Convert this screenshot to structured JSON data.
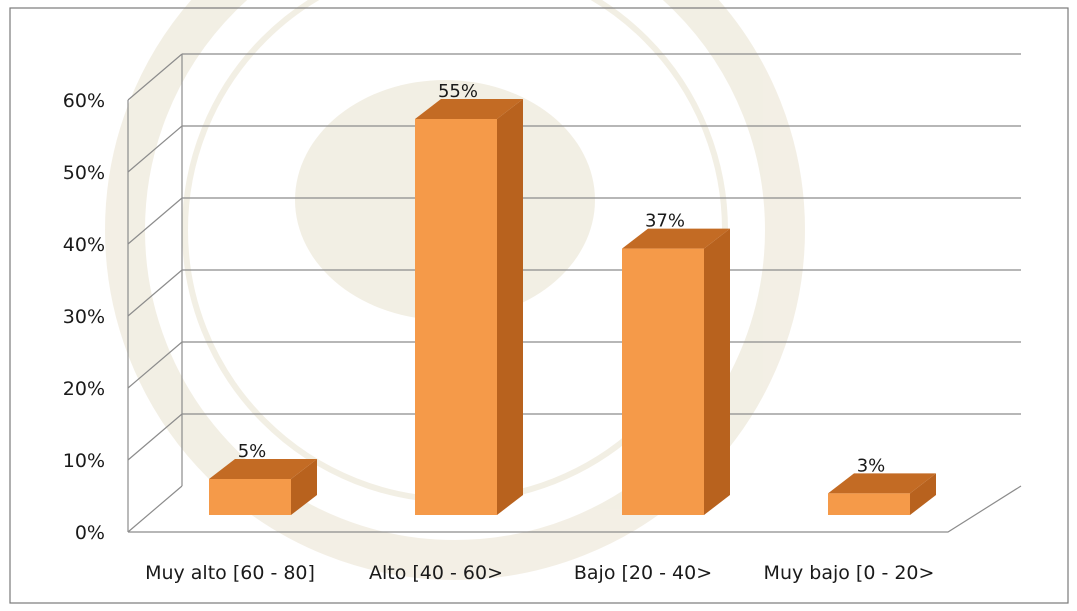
{
  "chart_data": {
    "type": "bar",
    "categories": [
      "Muy alto [60 - 80]",
      "Alto [40 - 60>",
      "Bajo [20 - 40>",
      "Muy bajo [0 - 20>"
    ],
    "values": [
      5,
      55,
      37,
      3
    ],
    "data_labels": [
      "5%",
      "55%",
      "37%",
      "3%"
    ],
    "y_ticks": [
      "0%",
      "10%",
      "20%",
      "30%",
      "40%",
      "50%",
      "60%"
    ],
    "ylim": [
      0,
      60
    ],
    "grid": true,
    "legend": false,
    "three_d": true
  },
  "colors": {
    "bar_front": "#f59a49",
    "bar_top": "#c36b24",
    "bar_side": "#b8621e",
    "gridline": "#8c8c8c",
    "frame": "#7a7a7a",
    "watermark": "#e9e2cf"
  }
}
